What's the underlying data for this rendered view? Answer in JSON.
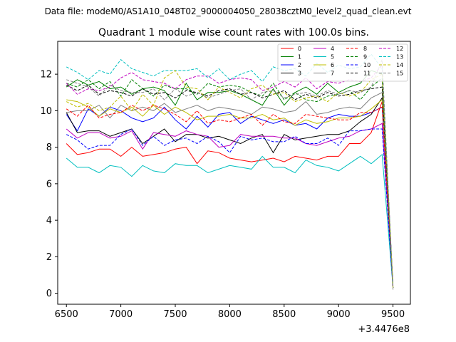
{
  "header_text": "Data file: modeM0/AS1A10_048T02_9000004050_28038cztM0_level2_quad_clean.evt",
  "chart_data": {
    "type": "line",
    "title": "Quadrant 1 module wise count rates with 100.0s bins.",
    "xlabel": "",
    "ylabel": "",
    "x_offset_label": "+3.4476e8",
    "xlim": [
      6420,
      9660
    ],
    "ylim": [
      -0.6,
      13.8
    ],
    "x_ticks": [
      6500,
      7000,
      7500,
      8000,
      8500,
      9000,
      9500
    ],
    "y_ticks": [
      0,
      2,
      4,
      6,
      8,
      10,
      12
    ],
    "x": [
      6500,
      6600,
      6700,
      6800,
      6900,
      7000,
      7100,
      7200,
      7300,
      7400,
      7500,
      7600,
      7700,
      7800,
      7900,
      8000,
      8100,
      8200,
      8300,
      8400,
      8500,
      8600,
      8700,
      8800,
      8900,
      9000,
      9100,
      9200,
      9300,
      9400,
      9500
    ],
    "legend": {
      "placement": "top-right",
      "columns": 4,
      "fontsize_note": "small"
    },
    "series": [
      {
        "name": "0",
        "color": "#ff0000",
        "dash": "solid",
        "values": [
          8.2,
          7.6,
          7.7,
          7.9,
          7.9,
          7.5,
          8.0,
          7.5,
          7.6,
          7.7,
          7.9,
          8.0,
          7.1,
          7.8,
          7.7,
          7.4,
          7.3,
          7.2,
          7.3,
          7.4,
          7.2,
          7.5,
          7.4,
          7.3,
          7.5,
          7.5,
          8.2,
          8.2,
          8.8,
          10.5,
          0.3
        ]
      },
      {
        "name": "1",
        "color": "#008000",
        "dash": "solid",
        "values": [
          11.3,
          11.7,
          11.4,
          11.6,
          11.2,
          11.3,
          10.9,
          11.2,
          11.3,
          11.1,
          10.3,
          11.5,
          10.6,
          11.0,
          11.0,
          11.1,
          10.9,
          10.6,
          10.3,
          11.2,
          10.3,
          11.0,
          11.3,
          10.9,
          11.5,
          11.0,
          11.3,
          11.5,
          12.2,
          12.0,
          0.4
        ]
      },
      {
        "name": "2",
        "color": "#0000ff",
        "dash": "solid",
        "values": [
          9.8,
          8.9,
          10.1,
          9.7,
          10.2,
          10.0,
          9.6,
          9.4,
          9.6,
          10.2,
          9.5,
          9.0,
          9.7,
          9.1,
          9.8,
          9.9,
          9.3,
          9.7,
          9.5,
          9.3,
          9.5,
          9.2,
          9.3,
          9.0,
          9.6,
          9.8,
          9.7,
          9.7,
          9.9,
          10.2,
          0.3
        ]
      },
      {
        "name": "3",
        "color": "#000000",
        "dash": "solid",
        "values": [
          9.9,
          8.8,
          8.9,
          8.9,
          8.6,
          8.8,
          9.0,
          8.2,
          8.6,
          9.0,
          8.3,
          8.7,
          8.7,
          8.5,
          8.6,
          8.4,
          8.2,
          8.5,
          8.7,
          7.7,
          8.7,
          8.4,
          8.5,
          8.6,
          8.7,
          8.7,
          8.9,
          9.4,
          9.8,
          10.7,
          0.3
        ]
      },
      {
        "name": "4",
        "color": "#bf00bf",
        "dash": "solid",
        "values": [
          9.0,
          8.5,
          8.8,
          8.8,
          8.5,
          8.6,
          8.9,
          7.9,
          8.8,
          8.7,
          8.6,
          8.9,
          8.7,
          8.6,
          8.0,
          8.1,
          8.7,
          8.6,
          8.6,
          8.6,
          8.5,
          8.5,
          8.2,
          8.1,
          8.3,
          8.5,
          8.6,
          8.9,
          9.0,
          9.3,
          0.3
        ]
      },
      {
        "name": "5",
        "color": "#00bfbf",
        "dash": "solid",
        "values": [
          7.4,
          6.9,
          6.9,
          6.6,
          7.0,
          6.9,
          6.4,
          7.0,
          6.7,
          6.6,
          7.1,
          7.0,
          7.0,
          6.6,
          6.8,
          7.0,
          6.9,
          6.8,
          7.5,
          6.9,
          6.9,
          6.6,
          7.3,
          7.0,
          6.9,
          6.7,
          7.1,
          7.5,
          7.1,
          7.6,
          0.3
        ]
      },
      {
        "name": "6",
        "color": "#bfbf00",
        "dash": "solid",
        "values": [
          10.6,
          10.5,
          10.2,
          9.7,
          10.1,
          9.9,
          10.2,
          9.7,
          10.3,
          9.8,
          10.2,
          9.9,
          9.5,
          9.7,
          9.7,
          9.8,
          9.6,
          9.6,
          9.8,
          9.5,
          9.6,
          9.2,
          9.5,
          9.3,
          9.4,
          9.6,
          9.6,
          9.7,
          10.1,
          10.6,
          0.3
        ]
      },
      {
        "name": "7",
        "color": "#808080",
        "dash": "solid",
        "values": [
          9.9,
          10.0,
          10.0,
          10.3,
          9.6,
          10.3,
          10.0,
          10.2,
          10.0,
          10.4,
          9.9,
          10.1,
          10.3,
          10.0,
          10.2,
          10.1,
          10.0,
          9.8,
          10.2,
          10.1,
          9.9,
          10.0,
          10.5,
          9.8,
          9.9,
          10.1,
          10.2,
          10.1,
          10.7,
          11.0,
          0.3
        ]
      },
      {
        "name": "8",
        "color": "#ff0000",
        "dash": "dashed",
        "values": [
          10.1,
          9.7,
          10.3,
          9.6,
          9.8,
          9.9,
          10.3,
          10.0,
          10.3,
          10.1,
          9.8,
          9.4,
          10.0,
          9.3,
          9.5,
          9.4,
          9.6,
          9.8,
          9.2,
          9.8,
          9.4,
          9.3,
          9.8,
          9.7,
          9.6,
          9.5,
          9.5,
          9.9,
          9.9,
          10.2,
          0.3
        ]
      },
      {
        "name": "9",
        "color": "#008000",
        "dash": "dashed",
        "values": [
          11.5,
          11.3,
          11.7,
          11.2,
          11.6,
          10.8,
          11.7,
          11.2,
          10.8,
          11.4,
          11.2,
          11.2,
          10.9,
          11.5,
          11.3,
          11.4,
          11.3,
          11.0,
          10.8,
          11.5,
          10.6,
          11.0,
          10.6,
          10.5,
          10.8,
          10.9,
          11.1,
          10.6,
          11.3,
          11.8,
          0.3
        ]
      },
      {
        "name": "10",
        "color": "#0000ff",
        "dash": "dashed",
        "values": [
          8.7,
          8.4,
          7.9,
          8.1,
          8.1,
          8.7,
          9.0,
          8.1,
          8.6,
          8.1,
          8.4,
          8.5,
          8.2,
          8.6,
          8.3,
          7.7,
          8.6,
          8.4,
          8.5,
          8.3,
          8.3,
          8.6,
          8.2,
          8.2,
          8.5,
          8.1,
          8.9,
          8.9,
          9.0,
          9.0,
          0.3
        ]
      },
      {
        "name": "11",
        "color": "#000000",
        "dash": "dashed",
        "values": [
          11.4,
          11.1,
          11.4,
          10.9,
          11.1,
          11.0,
          10.8,
          11.2,
          10.9,
          11.0,
          10.7,
          11.1,
          11.0,
          10.8,
          11.1,
          11.2,
          10.9,
          11.0,
          10.7,
          10.9,
          11.1,
          10.6,
          10.9,
          10.7,
          11.0,
          10.8,
          10.9,
          11.1,
          11.2,
          11.3,
          0.3
        ]
      },
      {
        "name": "12",
        "color": "#bf00bf",
        "dash": "dashed",
        "values": [
          11.5,
          10.9,
          11.2,
          11.1,
          11.3,
          11.8,
          12.1,
          11.7,
          11.6,
          11.5,
          11.2,
          11.7,
          11.9,
          11.9,
          11.5,
          11.7,
          11.8,
          11.7,
          11.1,
          11.3,
          11.6,
          11.3,
          11.8,
          11.2,
          11.6,
          11.5,
          11.7,
          11.6,
          11.8,
          12.5,
          0.3
        ]
      },
      {
        "name": "13",
        "color": "#00bfbf",
        "dash": "dashed",
        "values": [
          12.4,
          12.1,
          11.7,
          12.2,
          12.0,
          12.8,
          12.3,
          12.1,
          11.9,
          12.2,
          12.2,
          12.2,
          12.3,
          11.8,
          12.3,
          11.7,
          12.0,
          12.2,
          11.6,
          12.4,
          12.2,
          12.3,
          11.9,
          12.6,
          12.1,
          12.5,
          12.3,
          12.4,
          13.1,
          12.3,
          0.3
        ]
      },
      {
        "name": "14",
        "color": "#bfbf00",
        "dash": "dashed",
        "values": [
          10.5,
          10.2,
          10.4,
          10.0,
          10.2,
          10.8,
          10.0,
          10.9,
          10.3,
          11.8,
          12.2,
          11.3,
          11.2,
          10.6,
          11.3,
          11.0,
          10.7,
          11.2,
          11.4,
          10.9,
          11.0,
          10.5,
          10.7,
          10.8,
          10.5,
          11.0,
          10.8,
          11.0,
          11.7,
          12.0,
          0.3
        ]
      },
      {
        "name": "15",
        "color": "#808080",
        "dash": "dashed",
        "values": [
          11.7,
          11.5,
          11.3,
          10.8,
          11.4,
          11.1,
          11.0,
          11.0,
          11.2,
          10.6,
          11.2,
          10.8,
          11.0,
          10.7,
          10.9,
          11.1,
          11.2,
          10.6,
          11.0,
          11.1,
          10.7,
          10.9,
          11.0,
          10.8,
          11.1,
          10.9,
          11.1,
          11.0,
          11.3,
          12.8,
          0.2
        ]
      }
    ]
  }
}
